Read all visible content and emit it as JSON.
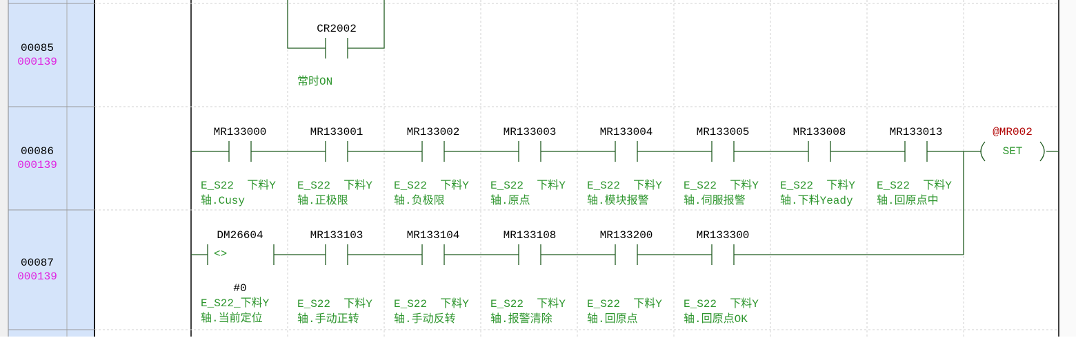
{
  "rows": [
    {
      "number": "00085",
      "step": "000139",
      "contacts": [
        {
          "device": "CR2002",
          "comment": [
            "常时ON"
          ]
        }
      ]
    },
    {
      "number": "00086",
      "step": "000139",
      "contacts": [
        {
          "device": "MR133000",
          "comment": [
            "E_S22  下料Y",
            "轴.Cusy"
          ]
        },
        {
          "device": "MR133001",
          "comment": [
            "E_S22  下料Y",
            "轴.正极限"
          ]
        },
        {
          "device": "MR133002",
          "comment": [
            "E_S22  下料Y",
            "轴.负极限"
          ]
        },
        {
          "device": "MR133003",
          "comment": [
            "E_S22  下料Y",
            "轴.原点"
          ]
        },
        {
          "device": "MR133004",
          "comment": [
            "E_S22  下料Y",
            "轴.模块报警"
          ]
        },
        {
          "device": "MR133005",
          "comment": [
            "E_S22  下料Y",
            "轴.伺服报警"
          ]
        },
        {
          "device": "MR133008",
          "comment": [
            "E_S22  下料Y",
            "轴.下料Yeady"
          ]
        },
        {
          "device": "MR133013",
          "comment": [
            "E_S22  下料Y",
            "轴.回原点中"
          ]
        }
      ],
      "coil": {
        "device": "@MR002",
        "instruction": "SET"
      }
    },
    {
      "number": "00087",
      "step": "000139",
      "compare": {
        "device": "DM26604",
        "operator": "<>",
        "operand": "#0",
        "comment": [
          "E_S22_下料Y",
          "轴.当前定位"
        ]
      },
      "contacts": [
        {
          "device": "MR133103",
          "comment": [
            "E_S22  下料Y",
            "轴.手动正转"
          ]
        },
        {
          "device": "MR133104",
          "comment": [
            "E_S22  下料Y",
            "轴.手动反转"
          ]
        },
        {
          "device": "MR133108",
          "comment": [
            "E_S22  下料Y",
            "轴.报警清除"
          ]
        },
        {
          "device": "MR133200",
          "comment": [
            "E_S22  下料Y",
            "轴.回原点"
          ]
        },
        {
          "device": "MR133300",
          "comment": [
            "E_S22  下料Y",
            "轴.回原点OK"
          ]
        }
      ]
    }
  ]
}
